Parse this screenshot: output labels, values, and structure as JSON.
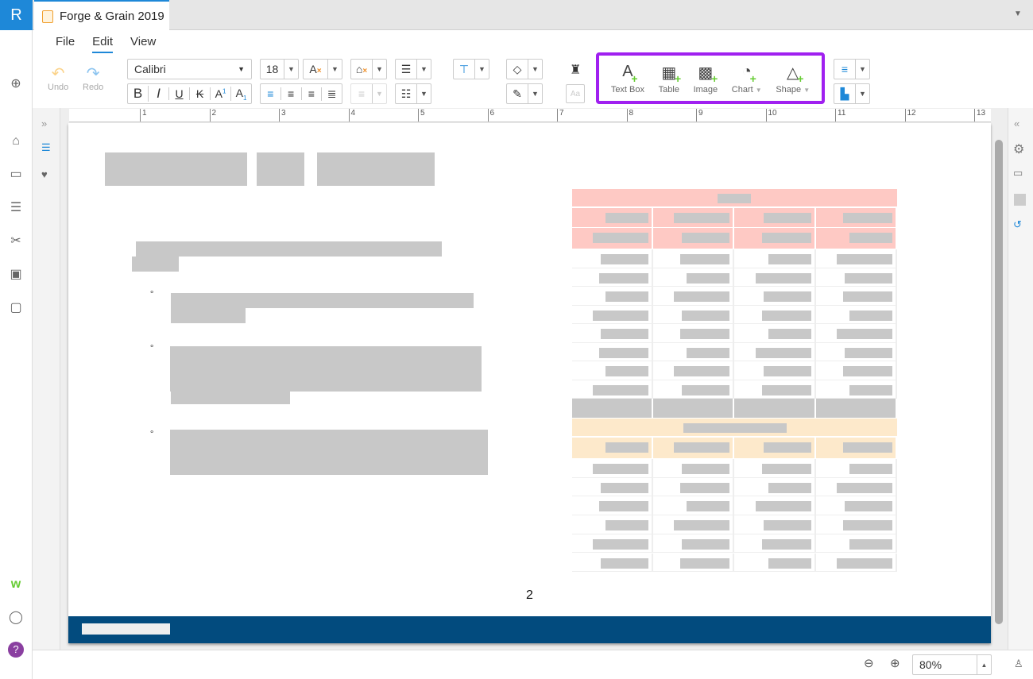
{
  "app": {
    "logo": "R",
    "tab_title": "Forge & Grain 2019"
  },
  "menu": [
    {
      "label": "File"
    },
    {
      "label": "Edit",
      "active": true
    },
    {
      "label": "View"
    }
  ],
  "toolbar": {
    "undo": "Undo",
    "redo": "Redo",
    "font": "Calibri",
    "font_size": "18",
    "insert": [
      {
        "label": "Text Box",
        "icon": "text-box-icon"
      },
      {
        "label": "Table",
        "icon": "table-icon"
      },
      {
        "label": "Image",
        "icon": "image-icon"
      },
      {
        "label": "Chart",
        "icon": "chart-icon",
        "dropdown": true
      },
      {
        "label": "Shape",
        "icon": "shape-icon",
        "dropdown": true
      }
    ],
    "highlight_color": "#a020f0"
  },
  "ruler": [
    "1",
    "2",
    "3",
    "4",
    "5",
    "6",
    "7",
    "8",
    "9",
    "10",
    "11",
    "12",
    "13"
  ],
  "document": {
    "page_number": "2",
    "footer_color": "#024b7e"
  },
  "status": {
    "zoom": "80%"
  }
}
